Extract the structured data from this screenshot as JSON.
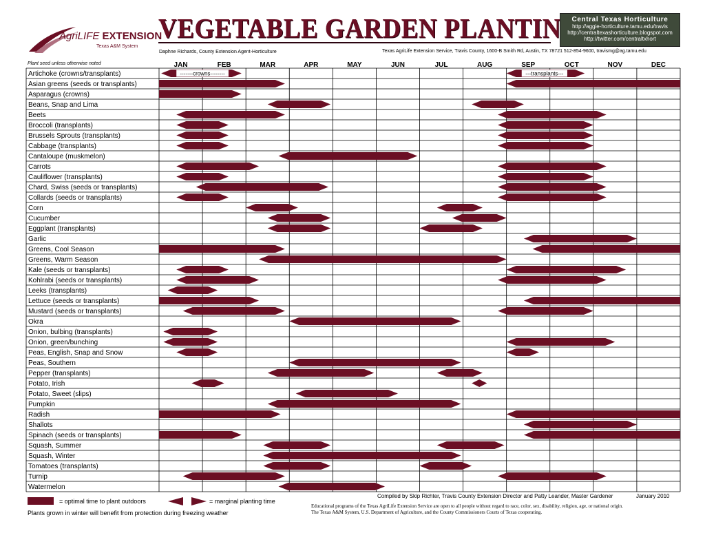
{
  "header": {
    "logo_main": "AgriLIFE",
    "logo_strong": "EXTENSION",
    "logo_sub": "Texas A&M System",
    "title": "VEGETABLE GARDEN PLANTING GUIDE",
    "agent": "Daphne Richards, County Extension Agent-Horticulture",
    "service": "Texas AgriLife Extension Service, Travis County, 1600-B Smith Rd, Austin, TX  78721   512-854-9600, travismg@ag.tamu.edu",
    "cth_name": "Central Texas Horticulture",
    "cth_links": [
      "http://aggie-horticulture.tamu.edu/travis",
      "http://centraltexashorticulture.blogspot.com",
      "http://twitter.com/centraltxhort"
    ],
    "note": "Plant seed unless otherwise noted",
    "colors": {
      "accent": "#6b0f24",
      "box": "#3f4a3a"
    }
  },
  "chart_data": {
    "type": "gantt",
    "months": [
      "JAN",
      "FEB",
      "MAR",
      "APR",
      "MAY",
      "JUN",
      "JUL",
      "AUG",
      "SEP",
      "OCT",
      "NOV",
      "DEC"
    ],
    "notes": [
      {
        "row": 0,
        "text": "-------crowns--------"
      },
      {
        "row": 0,
        "text": "---transplants---"
      }
    ],
    "rows": [
      {
        "name": "Artichoke (crowns/transplants)",
        "bars": [
          [
            0.05,
            1.9,
            "arrow"
          ],
          [
            8.0,
            9.8,
            "arrow"
          ]
        ]
      },
      {
        "name": "Asian greens (seeds or transplants)",
        "bars": [
          [
            0.0,
            2.9,
            "sr"
          ],
          [
            8.0,
            12.0,
            "sl"
          ]
        ]
      },
      {
        "name": "Asparagus (crowns)",
        "bars": [
          [
            0.0,
            1.9,
            "sr"
          ]
        ]
      },
      {
        "name": "Beans, Snap and Lima",
        "bars": [
          [
            2.5,
            3.95,
            "arrow"
          ],
          [
            7.2,
            8.4,
            "arrow"
          ]
        ]
      },
      {
        "name": "Beets",
        "bars": [
          [
            0.4,
            2.9,
            "arrow"
          ],
          [
            7.8,
            10.3,
            "arrow"
          ]
        ]
      },
      {
        "name": "Broccoli (transplants)",
        "bars": [
          [
            0.4,
            1.6,
            "arrow"
          ],
          [
            7.8,
            10.0,
            "arrow"
          ]
        ]
      },
      {
        "name": "Brussels Sprouts (transplants)",
        "bars": [
          [
            0.4,
            1.6,
            "arrow"
          ],
          [
            7.8,
            10.0,
            "arrow"
          ]
        ]
      },
      {
        "name": "Cabbage (transplants)",
        "bars": [
          [
            0.4,
            1.6,
            "arrow"
          ],
          [
            7.8,
            10.0,
            "arrow"
          ]
        ]
      },
      {
        "name": "Cantaloupe (muskmelon)",
        "bars": [
          [
            2.75,
            5.95,
            "arrow"
          ]
        ]
      },
      {
        "name": "Carrots",
        "bars": [
          [
            0.4,
            2.3,
            "arrow"
          ],
          [
            7.8,
            10.3,
            "arrow"
          ]
        ]
      },
      {
        "name": "Cauliflower (transplants)",
        "bars": [
          [
            0.4,
            1.6,
            "arrow"
          ],
          [
            7.8,
            10.0,
            "arrow"
          ]
        ]
      },
      {
        "name": "Chard, Swiss (seeds or transplants)",
        "bars": [
          [
            0.85,
            3.9,
            "arrow"
          ],
          [
            7.8,
            10.3,
            "arrow"
          ]
        ]
      },
      {
        "name": "Collards (seeds or transplants)",
        "bars": [
          [
            0.4,
            1.6,
            "arrow"
          ],
          [
            7.8,
            10.3,
            "arrow"
          ]
        ]
      },
      {
        "name": "Corn",
        "bars": [
          [
            2.0,
            3.2,
            "arrow"
          ],
          [
            6.4,
            7.45,
            "arrow"
          ]
        ]
      },
      {
        "name": "Cucumber",
        "bars": [
          [
            2.5,
            3.95,
            "arrow"
          ],
          [
            6.75,
            8.0,
            "arrow"
          ]
        ]
      },
      {
        "name": "Eggplant (transplants)",
        "bars": [
          [
            2.5,
            3.95,
            "arrow"
          ],
          [
            6.0,
            7.45,
            "arrow"
          ]
        ]
      },
      {
        "name": "Garlic",
        "bars": [
          [
            8.4,
            11.0,
            "arrow"
          ]
        ]
      },
      {
        "name": "Greens, Cool Season",
        "bars": [
          [
            0.0,
            2.9,
            "sr"
          ],
          [
            8.6,
            12.0,
            "sl"
          ]
        ]
      },
      {
        "name": "Greens, Warm Season",
        "bars": [
          [
            2.3,
            8.0,
            "arrow"
          ]
        ]
      },
      {
        "name": "Kale (seeds or transplants)",
        "bars": [
          [
            0.4,
            1.6,
            "arrow"
          ],
          [
            8.0,
            10.75,
            "arrow"
          ]
        ]
      },
      {
        "name": "Kohlrabi (seeds or transplants)",
        "bars": [
          [
            0.4,
            2.3,
            "arrow"
          ],
          [
            7.8,
            10.3,
            "arrow"
          ]
        ]
      },
      {
        "name": "Leeks (transplants)",
        "bars": [
          [
            0.2,
            1.35,
            "arrow"
          ]
        ]
      },
      {
        "name": "Lettuce (seeds or transplants)",
        "bars": [
          [
            0.0,
            2.3,
            "sr"
          ],
          [
            8.4,
            12.0,
            "sl"
          ]
        ]
      },
      {
        "name": "Mustard (seeds or transplants)",
        "bars": [
          [
            0.55,
            2.9,
            "arrow"
          ],
          [
            7.8,
            10.0,
            "arrow"
          ]
        ]
      },
      {
        "name": "Okra",
        "bars": [
          [
            3.0,
            6.95,
            "arrow"
          ]
        ]
      },
      {
        "name": "Onion, bulbing (transplants)",
        "bars": [
          [
            0.1,
            1.35,
            "arrow"
          ]
        ]
      },
      {
        "name": "Onion, green/bunching",
        "bars": [
          [
            0.1,
            1.35,
            "arrow"
          ],
          [
            8.0,
            10.5,
            "arrow"
          ]
        ]
      },
      {
        "name": "Peas, English, Snap and Snow",
        "bars": [
          [
            0.4,
            1.35,
            "arrow"
          ],
          [
            8.0,
            8.75,
            "arrow"
          ]
        ]
      },
      {
        "name": "Peas, Southern",
        "bars": [
          [
            3.0,
            6.95,
            "arrow"
          ]
        ]
      },
      {
        "name": "Pepper (transplants)",
        "bars": [
          [
            2.5,
            4.95,
            "arrow"
          ],
          [
            6.4,
            7.45,
            "arrow"
          ]
        ]
      },
      {
        "name": "Potato, Irish",
        "bars": [
          [
            0.75,
            1.5,
            "arrow"
          ],
          [
            7.2,
            7.55,
            "arrow"
          ]
        ]
      },
      {
        "name": "Potato, Sweet (slips)",
        "bars": [
          [
            3.15,
            5.5,
            "arrow"
          ]
        ]
      },
      {
        "name": "Pumpkin",
        "bars": [
          [
            2.5,
            6.95,
            "arrow"
          ]
        ]
      },
      {
        "name": "Radish",
        "bars": [
          [
            0.0,
            2.8,
            "sr"
          ],
          [
            8.0,
            12.0,
            "sl"
          ]
        ]
      },
      {
        "name": "Shallots",
        "bars": [
          [
            8.4,
            11.0,
            "arrow"
          ]
        ]
      },
      {
        "name": "Spinach (seeds or transplants)",
        "bars": [
          [
            0.0,
            1.9,
            "sr"
          ],
          [
            8.4,
            12.0,
            "sl"
          ]
        ]
      },
      {
        "name": "Squash, Summer",
        "bars": [
          [
            2.4,
            3.95,
            "arrow"
          ],
          [
            6.4,
            7.95,
            "arrow"
          ]
        ]
      },
      {
        "name": "Squash, Winter",
        "bars": [
          [
            2.4,
            6.95,
            "arrow"
          ]
        ]
      },
      {
        "name": "Tomatoes (transplants)",
        "bars": [
          [
            2.4,
            3.95,
            "arrow"
          ],
          [
            6.0,
            7.2,
            "arrow"
          ]
        ]
      },
      {
        "name": "Turnip",
        "bars": [
          [
            0.55,
            2.9,
            "arrow"
          ],
          [
            7.8,
            10.3,
            "arrow"
          ]
        ]
      },
      {
        "name": "Watermelon",
        "bars": [
          [
            2.75,
            5.2,
            "arrow"
          ]
        ]
      }
    ]
  },
  "footer": {
    "legend_optimal": "= optimal time to plant outdoors",
    "legend_marginal": "= marginal planting time",
    "winter_note": "Plants grown in winter will benefit from protection during freezing weather",
    "compiled": "Compiled by Skip Richter, Travis County Extension Director and Patty Leander, Master Gardener",
    "date": "January 2010",
    "disclaimer1": "Educational programs of the Texas AgriLife Extension Service are open to all people without regard to race, color, sex, disability, religion, age, or national origin.",
    "disclaimer2": "The Texas A&M System, U.S. Department of Agriculture, and the County Commissioners Courts of Texas cooperating."
  }
}
